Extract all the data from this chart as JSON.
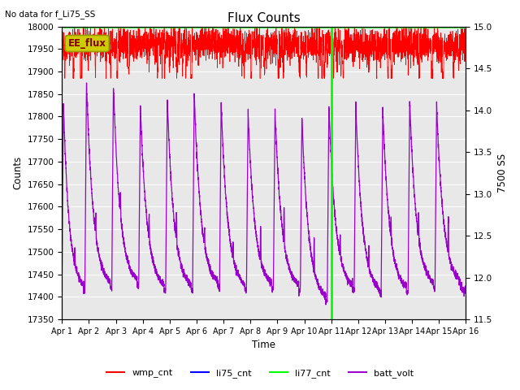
{
  "title": "Flux Counts",
  "top_left_text": "No data for f_Li75_SS",
  "xlabel": "Time",
  "ylabel_left": "Counts",
  "ylabel_right": "7500 SS",
  "ylim_left": [
    17350,
    18000
  ],
  "ylim_right": [
    11.5,
    15.0
  ],
  "xlim": [
    0,
    15
  ],
  "x_ticks": [
    0,
    1,
    2,
    3,
    4,
    5,
    6,
    7,
    8,
    9,
    10,
    11,
    12,
    13,
    14,
    15
  ],
  "x_tick_labels": [
    "Apr 1",
    "Apr 2",
    "Apr 3",
    "Apr 4",
    "Apr 5",
    "Apr 6",
    "Apr 7",
    "Apr 8",
    "Apr 9",
    "Apr 10",
    "Apr 11",
    "Apr 12",
    "Apr 13",
    "Apr 14",
    "Apr 15",
    "Apr 16"
  ],
  "background_color": "#e8e8e8",
  "wmp_color": "#ff0000",
  "li75_color": "#0000ff",
  "li77_color": "#00ff00",
  "batt_color": "#9900cc",
  "ee_flux_box_color": "#cccc00",
  "ee_flux_text_color": "#800000",
  "vline_x": 10,
  "vline_color": "#00ff00",
  "batt_min": 17415,
  "batt_max": 17860,
  "wmp_base": 17960,
  "wmp_noise": 18,
  "li77_level": 17998
}
